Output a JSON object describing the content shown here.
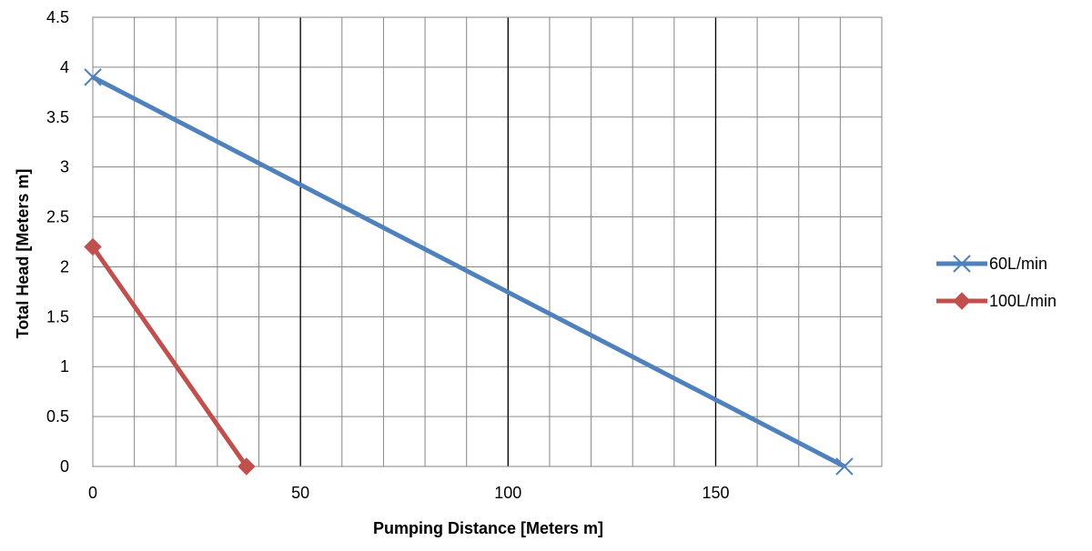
{
  "chart_data": {
    "type": "scatter",
    "title": "",
    "xlabel": "Pumping Distance [Meters m]",
    "ylabel": "Total Head [Meters m]",
    "xlim": [
      0,
      190
    ],
    "ylim": [
      0,
      4.5
    ],
    "x_ticks": [
      0,
      50,
      100,
      150
    ],
    "x_tick_labels": [
      "0",
      "50",
      "100",
      "150"
    ],
    "y_ticks": [
      0,
      0.5,
      1,
      1.5,
      2,
      2.5,
      3,
      3.5,
      4,
      4.5
    ],
    "y_tick_labels": [
      "0",
      "0.5",
      "1",
      "1.5",
      "2",
      "2.5",
      "3",
      "3.5",
      "4",
      "4.5"
    ],
    "x_minor_grid_step": 10,
    "x_major_grid_step": 50,
    "grid": true,
    "legend_position": "right",
    "series": [
      {
        "name": "60L/min",
        "color": "#4F81BD",
        "marker": "x",
        "x": [
          0,
          181
        ],
        "y": [
          3.9,
          0
        ]
      },
      {
        "name": "100L/min",
        "color": "#C0504D",
        "marker": "diamond",
        "x": [
          0,
          37
        ],
        "y": [
          2.2,
          0
        ]
      }
    ]
  }
}
